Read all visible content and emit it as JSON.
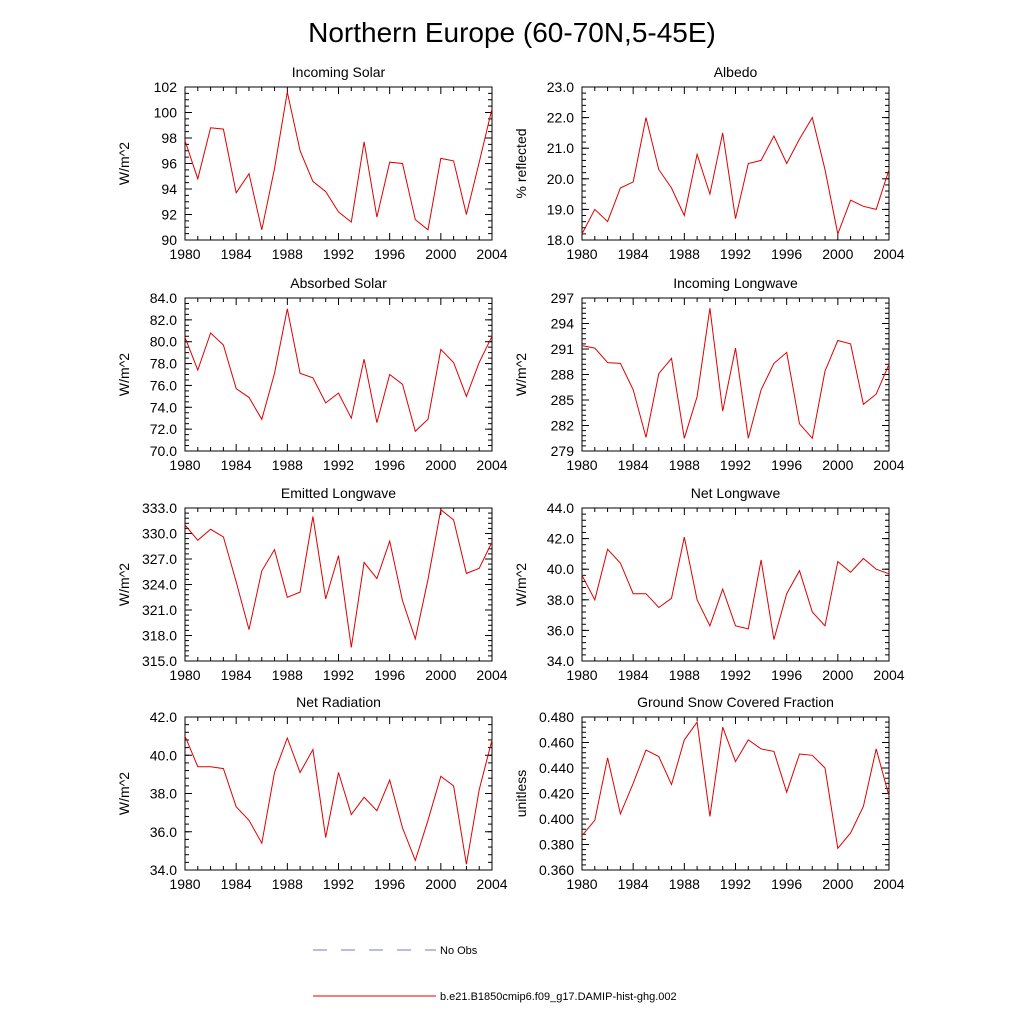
{
  "title": "Northern Europe (60-70N,5-45E)",
  "legend": {
    "obs_label": "No Obs",
    "obs_color": "#7777cc",
    "model_label": "b.e21.B1850cmip6.f09_g17.DAMIP-hist-ghg.002",
    "model_color": "#e00000"
  },
  "chart_data": [
    {
      "type": "line",
      "title": "Incoming Solar",
      "xlabel": "",
      "ylabel": "W/m^2",
      "xlim": [
        1980,
        2004
      ],
      "ylim": [
        90,
        102
      ],
      "xticks": [
        "1980",
        "1984",
        "1988",
        "1992",
        "1996",
        "2000",
        "2004"
      ],
      "yticks": [
        "90",
        "92",
        "94",
        "96",
        "98",
        "100",
        "102"
      ],
      "ytick_values": [
        90,
        92,
        94,
        96,
        98,
        100,
        102
      ],
      "yminor_step": 0.5,
      "x": [
        1980,
        1981,
        1982,
        1983,
        1984,
        1985,
        1986,
        1987,
        1988,
        1989,
        1990,
        1991,
        1992,
        1993,
        1994,
        1995,
        1996,
        1997,
        1998,
        1999,
        2000,
        2001,
        2002,
        2003,
        2004
      ],
      "series": [
        {
          "values": [
            97.8,
            94.8,
            98.8,
            98.7,
            93.7,
            95.2,
            90.8,
            95.6,
            101.6,
            97.0,
            94.6,
            93.8,
            92.2,
            91.4,
            97.7,
            91.8,
            96.1,
            96.0,
            91.6,
            90.8,
            96.4,
            96.2,
            92.0,
            96.1,
            100.3
          ]
        }
      ]
    },
    {
      "type": "line",
      "title": "Albedo",
      "xlabel": "",
      "ylabel": "% reflected",
      "xlim": [
        1980,
        2004
      ],
      "ylim": [
        18.0,
        23.0
      ],
      "xticks": [
        "1980",
        "1984",
        "1988",
        "1992",
        "1996",
        "2000",
        "2004"
      ],
      "yticks": [
        "18.0",
        "19.0",
        "20.0",
        "21.0",
        "22.0",
        "23.0"
      ],
      "ytick_values": [
        18,
        19,
        20,
        21,
        22,
        23
      ],
      "yminor_step": 0.2,
      "x": [
        1980,
        1981,
        1982,
        1983,
        1984,
        1985,
        1986,
        1987,
        1988,
        1989,
        1990,
        1991,
        1992,
        1993,
        1994,
        1995,
        1996,
        1997,
        1998,
        1999,
        2000,
        2001,
        2002,
        2003,
        2004
      ],
      "series": [
        {
          "values": [
            18.2,
            19.0,
            18.6,
            19.7,
            19.9,
            22.0,
            20.3,
            19.7,
            18.8,
            20.8,
            19.5,
            21.5,
            18.7,
            20.5,
            20.6,
            21.4,
            20.5,
            21.3,
            22.0,
            20.3,
            18.2,
            19.3,
            19.1,
            19.0,
            20.3
          ]
        }
      ]
    },
    {
      "type": "line",
      "title": "Absorbed Solar",
      "xlabel": "",
      "ylabel": "W/m^2",
      "xlim": [
        1980,
        2004
      ],
      "ylim": [
        70.0,
        84.0
      ],
      "xticks": [
        "1980",
        "1984",
        "1988",
        "1992",
        "1996",
        "2000",
        "2004"
      ],
      "yticks": [
        "70.0",
        "72.0",
        "74.0",
        "76.0",
        "78.0",
        "80.0",
        "82.0",
        "84.0"
      ],
      "ytick_values": [
        70,
        72,
        74,
        76,
        78,
        80,
        82,
        84
      ],
      "yminor_step": 0.5,
      "x": [
        1980,
        1981,
        1982,
        1983,
        1984,
        1985,
        1986,
        1987,
        1988,
        1989,
        1990,
        1991,
        1992,
        1993,
        1994,
        1995,
        1996,
        1997,
        1998,
        1999,
        2000,
        2001,
        2002,
        2003,
        2004
      ],
      "series": [
        {
          "values": [
            80.4,
            77.4,
            80.8,
            79.7,
            75.7,
            74.9,
            72.9,
            77.1,
            83.0,
            77.1,
            76.7,
            74.4,
            75.3,
            73.0,
            78.4,
            72.6,
            77.0,
            76.1,
            71.8,
            72.9,
            79.3,
            78.1,
            75.0,
            78.1,
            80.5
          ]
        }
      ]
    },
    {
      "type": "line",
      "title": "Incoming Longwave",
      "xlabel": "",
      "ylabel": "W/m^2",
      "xlim": [
        1980,
        2004
      ],
      "ylim": [
        279,
        297
      ],
      "xticks": [
        "1980",
        "1984",
        "1988",
        "1992",
        "1996",
        "2000",
        "2004"
      ],
      "yticks": [
        "279",
        "282",
        "285",
        "288",
        "291",
        "294",
        "297"
      ],
      "ytick_values": [
        279,
        282,
        285,
        288,
        291,
        294,
        297
      ],
      "yminor_step": 0.6,
      "x": [
        1980,
        1981,
        1982,
        1983,
        1984,
        1985,
        1986,
        1987,
        1988,
        1989,
        1990,
        1991,
        1992,
        1993,
        1994,
        1995,
        1996,
        1997,
        1998,
        1999,
        2000,
        2001,
        2002,
        2003,
        2004
      ],
      "series": [
        {
          "values": [
            291.4,
            291.1,
            289.4,
            289.3,
            286.2,
            280.6,
            288.1,
            289.9,
            280.5,
            285.4,
            295.8,
            283.7,
            291.1,
            280.5,
            286.2,
            289.3,
            290.6,
            282.2,
            280.5,
            288.4,
            292.0,
            291.6,
            284.5,
            285.7,
            289.2
          ]
        }
      ]
    },
    {
      "type": "line",
      "title": "Emitted Longwave",
      "xlabel": "",
      "ylabel": "W/m^2",
      "xlim": [
        1980,
        2004
      ],
      "ylim": [
        315.0,
        333.0
      ],
      "xticks": [
        "1980",
        "1984",
        "1988",
        "1992",
        "1996",
        "2000",
        "2004"
      ],
      "yticks": [
        "315.0",
        "318.0",
        "321.0",
        "324.0",
        "327.0",
        "330.0",
        "333.0"
      ],
      "ytick_values": [
        315,
        318,
        321,
        324,
        327,
        330,
        333
      ],
      "yminor_step": 0.6,
      "x": [
        1980,
        1981,
        1982,
        1983,
        1984,
        1985,
        1986,
        1987,
        1988,
        1989,
        1990,
        1991,
        1992,
        1993,
        1994,
        1995,
        1996,
        1997,
        1998,
        1999,
        2000,
        2001,
        2002,
        2003,
        2004
      ],
      "series": [
        {
          "values": [
            331.0,
            329.2,
            330.5,
            329.6,
            324.3,
            318.7,
            325.6,
            328.1,
            322.5,
            323.1,
            332.0,
            322.3,
            327.4,
            316.6,
            326.6,
            324.7,
            329.1,
            322.1,
            317.6,
            324.6,
            332.8,
            331.6,
            325.3,
            325.9,
            329.0
          ]
        }
      ]
    },
    {
      "type": "line",
      "title": "Net Longwave",
      "xlabel": "",
      "ylabel": "W/m^2",
      "xlim": [
        1980,
        2004
      ],
      "ylim": [
        34.0,
        44.0
      ],
      "xticks": [
        "1980",
        "1984",
        "1988",
        "1992",
        "1996",
        "2000",
        "2004"
      ],
      "yticks": [
        "34.0",
        "36.0",
        "38.0",
        "40.0",
        "42.0",
        "44.0"
      ],
      "ytick_values": [
        34,
        36,
        38,
        40,
        42,
        44
      ],
      "yminor_step": 0.4,
      "x": [
        1980,
        1981,
        1982,
        1983,
        1984,
        1985,
        1986,
        1987,
        1988,
        1989,
        1990,
        1991,
        1992,
        1993,
        1994,
        1995,
        1996,
        1997,
        1998,
        1999,
        2000,
        2001,
        2002,
        2003,
        2004
      ],
      "series": [
        {
          "values": [
            39.6,
            38.0,
            41.3,
            40.4,
            38.4,
            38.4,
            37.5,
            38.1,
            42.1,
            38.0,
            36.3,
            38.7,
            36.3,
            36.1,
            40.6,
            35.4,
            38.4,
            39.9,
            37.2,
            36.3,
            40.5,
            39.8,
            40.7,
            40.0,
            39.7
          ]
        }
      ]
    },
    {
      "type": "line",
      "title": "Net Radiation",
      "xlabel": "",
      "ylabel": "W/m^2",
      "xlim": [
        1980,
        2004
      ],
      "ylim": [
        34.0,
        42.0
      ],
      "xticks": [
        "1980",
        "1984",
        "1988",
        "1992",
        "1996",
        "2000",
        "2004"
      ],
      "yticks": [
        "34.0",
        "36.0",
        "38.0",
        "40.0",
        "42.0"
      ],
      "ytick_values": [
        34,
        36,
        38,
        40,
        42
      ],
      "yminor_step": 0.4,
      "x": [
        1980,
        1981,
        1982,
        1983,
        1984,
        1985,
        1986,
        1987,
        1988,
        1989,
        1990,
        1991,
        1992,
        1993,
        1994,
        1995,
        1996,
        1997,
        1998,
        1999,
        2000,
        2001,
        2002,
        2003,
        2004
      ],
      "series": [
        {
          "values": [
            41.0,
            39.4,
            39.4,
            39.3,
            37.3,
            36.6,
            35.4,
            39.1,
            40.9,
            39.1,
            40.3,
            35.7,
            39.1,
            36.9,
            37.8,
            37.1,
            38.7,
            36.2,
            34.5,
            36.6,
            38.9,
            38.4,
            34.3,
            38.2,
            40.8
          ]
        }
      ]
    },
    {
      "type": "line",
      "title": "Ground Snow Covered Fraction",
      "xlabel": "",
      "ylabel": "unitless",
      "xlim": [
        1980,
        2004
      ],
      "ylim": [
        0.36,
        0.48
      ],
      "xticks": [
        "1980",
        "1984",
        "1988",
        "1992",
        "1996",
        "2000",
        "2004"
      ],
      "yticks": [
        "0.360",
        "0.380",
        "0.400",
        "0.420",
        "0.440",
        "0.460",
        "0.480"
      ],
      "ytick_values": [
        0.36,
        0.38,
        0.4,
        0.42,
        0.44,
        0.46,
        0.48
      ],
      "yminor_step": 0.004,
      "x": [
        1980,
        1981,
        1982,
        1983,
        1984,
        1985,
        1986,
        1987,
        1988,
        1989,
        1990,
        1991,
        1992,
        1993,
        1994,
        1995,
        1996,
        1997,
        1998,
        1999,
        2000,
        2001,
        2002,
        2003,
        2004
      ],
      "series": [
        {
          "values": [
            0.387,
            0.399,
            0.448,
            0.404,
            0.428,
            0.454,
            0.449,
            0.427,
            0.462,
            0.476,
            0.402,
            0.472,
            0.445,
            0.462,
            0.455,
            0.453,
            0.421,
            0.451,
            0.45,
            0.44,
            0.377,
            0.389,
            0.41,
            0.455,
            0.418
          ]
        }
      ]
    }
  ]
}
